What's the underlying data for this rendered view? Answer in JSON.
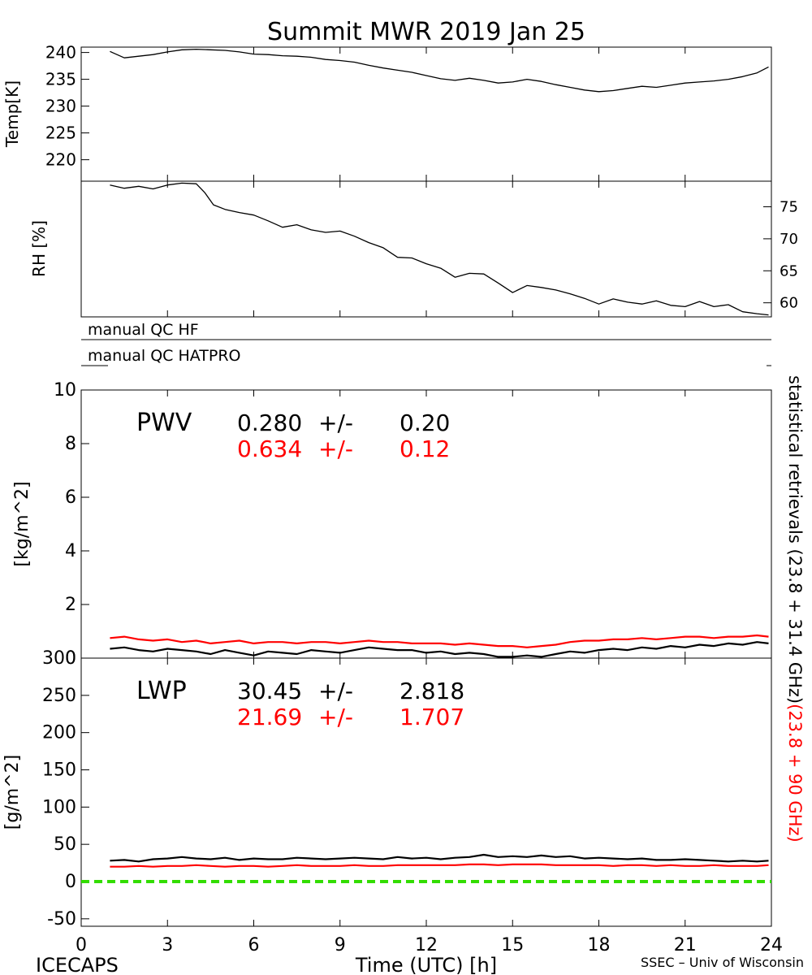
{
  "title": "Summit MWR 2019 Jan 25",
  "footer": {
    "left": "ICECAPS",
    "center": "Time (UTC) [h]",
    "right": "SSEC – Univ of Wisconsin"
  },
  "right_label": {
    "black": "statistical retrievals (23.8 + 31.4 GHz)",
    "red": "(23.8 + 90 GHz)"
  },
  "colors": {
    "axis": "#000000",
    "series_primary": "#000000",
    "series_secondary": "#ff0000",
    "zero_line": "#33dd00"
  },
  "qc": {
    "hf_label": "manual QC HF",
    "hatpro_label": "manual QC HATPRO"
  },
  "chart_data": [
    {
      "id": "temp",
      "type": "line",
      "ylabel": "Temp[K]",
      "xlim": [
        0,
        24
      ],
      "ylim": [
        216,
        241
      ],
      "yticks": [
        220,
        225,
        230,
        235,
        240
      ],
      "ytick_side": "left",
      "series": [
        {
          "color": "#000000",
          "x": [
            1.0,
            1.5,
            2.0,
            2.5,
            3.0,
            3.5,
            4.0,
            4.5,
            5.0,
            5.5,
            6.0,
            6.5,
            7.0,
            7.5,
            8.0,
            8.5,
            9.0,
            9.5,
            10.0,
            10.5,
            11.0,
            11.5,
            12.0,
            12.5,
            13.0,
            13.5,
            14.0,
            14.5,
            15.0,
            15.5,
            16.0,
            16.5,
            17.0,
            17.5,
            18.0,
            18.5,
            19.0,
            19.5,
            20.0,
            20.5,
            21.0,
            21.5,
            22.0,
            22.5,
            23.0,
            23.5,
            23.9
          ],
          "y": [
            240.2,
            239.0,
            239.3,
            239.6,
            240.1,
            240.5,
            240.6,
            240.5,
            240.4,
            240.1,
            239.7,
            239.6,
            239.4,
            239.3,
            239.1,
            238.7,
            238.5,
            238.2,
            237.6,
            237.1,
            236.7,
            236.3,
            235.7,
            235.1,
            234.8,
            235.2,
            234.8,
            234.3,
            234.5,
            235.0,
            234.6,
            234.0,
            233.5,
            233.0,
            232.7,
            232.9,
            233.3,
            233.7,
            233.5,
            233.9,
            234.3,
            234.5,
            234.7,
            235.0,
            235.5,
            236.2,
            237.3
          ]
        }
      ]
    },
    {
      "id": "rh",
      "type": "line",
      "ylabel": "RH [%]",
      "xlim": [
        0,
        24
      ],
      "ylim": [
        57.8,
        79.0
      ],
      "yticks": [
        60,
        65,
        70,
        75
      ],
      "ytick_side": "right",
      "series": [
        {
          "color": "#000000",
          "x": [
            1.0,
            1.5,
            2.0,
            2.5,
            3.0,
            3.5,
            4.0,
            4.3,
            4.6,
            5.0,
            5.5,
            6.0,
            6.5,
            7.0,
            7.5,
            8.0,
            8.5,
            9.0,
            9.5,
            10.0,
            10.5,
            11.0,
            11.5,
            12.0,
            12.5,
            13.0,
            13.5,
            14.0,
            14.5,
            15.0,
            15.5,
            16.0,
            16.5,
            17.0,
            17.5,
            18.0,
            18.5,
            19.0,
            19.5,
            20.0,
            20.5,
            21.0,
            21.5,
            22.0,
            22.5,
            23.0,
            23.5,
            23.9
          ],
          "y": [
            78.4,
            77.9,
            78.2,
            77.8,
            78.4,
            78.7,
            78.6,
            77.2,
            75.3,
            74.6,
            74.1,
            73.7,
            72.8,
            71.8,
            72.2,
            71.4,
            71.0,
            71.2,
            70.4,
            69.4,
            68.6,
            67.1,
            67.0,
            66.1,
            65.4,
            64.0,
            64.6,
            64.5,
            63.1,
            61.6,
            62.7,
            62.4,
            62.0,
            61.4,
            60.7,
            59.8,
            60.6,
            60.1,
            59.8,
            60.3,
            59.6,
            59.4,
            60.2,
            59.4,
            59.7,
            58.6,
            58.3,
            58.1
          ]
        }
      ]
    },
    {
      "id": "pwv",
      "type": "line",
      "ylabel": "[kg/m^2]",
      "xlim": [
        0,
        24
      ],
      "ylim": [
        0,
        10
      ],
      "yticks": [
        0,
        2,
        4,
        6,
        8,
        10
      ],
      "ytick_side": "left",
      "annotation": {
        "label": "PWV",
        "primary_mean": "0.280",
        "primary_sep": "+/-",
        "primary_std": "0.20",
        "secondary_mean": "0.634",
        "secondary_sep": "+/-",
        "secondary_std": "0.12"
      },
      "series": [
        {
          "color": "#000000",
          "x": [
            1.0,
            1.5,
            2.0,
            2.5,
            3.0,
            3.5,
            4.0,
            4.5,
            5.0,
            5.5,
            6.0,
            6.5,
            7.0,
            7.5,
            8.0,
            8.5,
            9.0,
            9.5,
            10.0,
            10.5,
            11.0,
            11.5,
            12.0,
            12.5,
            13.0,
            13.5,
            14.0,
            14.5,
            15.0,
            15.5,
            16.0,
            16.5,
            17.0,
            17.5,
            18.0,
            18.5,
            19.0,
            19.5,
            20.0,
            20.5,
            21.0,
            21.5,
            22.0,
            22.5,
            23.0,
            23.5,
            23.9
          ],
          "y": [
            0.35,
            0.4,
            0.3,
            0.25,
            0.35,
            0.3,
            0.25,
            0.15,
            0.3,
            0.2,
            0.1,
            0.25,
            0.2,
            0.15,
            0.3,
            0.25,
            0.2,
            0.3,
            0.4,
            0.35,
            0.3,
            0.3,
            0.2,
            0.25,
            0.15,
            0.2,
            0.15,
            0.05,
            0.05,
            0.1,
            0.05,
            0.15,
            0.25,
            0.2,
            0.3,
            0.35,
            0.3,
            0.4,
            0.35,
            0.45,
            0.4,
            0.5,
            0.45,
            0.55,
            0.5,
            0.6,
            0.55
          ]
        },
        {
          "color": "#ff0000",
          "x": [
            1.0,
            1.5,
            2.0,
            2.5,
            3.0,
            3.5,
            4.0,
            4.5,
            5.0,
            5.5,
            6.0,
            6.5,
            7.0,
            7.5,
            8.0,
            8.5,
            9.0,
            9.5,
            10.0,
            10.5,
            11.0,
            11.5,
            12.0,
            12.5,
            13.0,
            13.5,
            14.0,
            14.5,
            15.0,
            15.5,
            16.0,
            16.5,
            17.0,
            17.5,
            18.0,
            18.5,
            19.0,
            19.5,
            20.0,
            20.5,
            21.0,
            21.5,
            22.0,
            22.5,
            23.0,
            23.5,
            23.9
          ],
          "y": [
            0.75,
            0.8,
            0.7,
            0.65,
            0.7,
            0.6,
            0.65,
            0.55,
            0.6,
            0.65,
            0.55,
            0.6,
            0.6,
            0.55,
            0.6,
            0.6,
            0.55,
            0.6,
            0.65,
            0.6,
            0.6,
            0.55,
            0.55,
            0.55,
            0.5,
            0.55,
            0.5,
            0.45,
            0.45,
            0.4,
            0.45,
            0.5,
            0.6,
            0.65,
            0.65,
            0.7,
            0.7,
            0.75,
            0.7,
            0.75,
            0.8,
            0.8,
            0.75,
            0.8,
            0.8,
            0.85,
            0.8
          ]
        }
      ]
    },
    {
      "id": "lwp",
      "type": "line",
      "ylabel": "[g/m^2]",
      "xlabel": "Time (UTC) [h]",
      "xlim": [
        0,
        24
      ],
      "xticks": [
        0,
        3,
        6,
        9,
        12,
        15,
        18,
        21,
        24
      ],
      "ylim": [
        -60,
        300
      ],
      "yticks": [
        -50,
        0,
        50,
        100,
        150,
        200,
        250,
        300
      ],
      "ytick_side": "left",
      "annotation": {
        "label": "LWP",
        "primary_mean": "30.45",
        "primary_sep": "+/-",
        "primary_std": "2.818",
        "secondary_mean": "21.69",
        "secondary_sep": "+/-",
        "secondary_std": "1.707"
      },
      "zero_line": 0,
      "series": [
        {
          "color": "#000000",
          "x": [
            1.0,
            1.5,
            2.0,
            2.5,
            3.0,
            3.5,
            4.0,
            4.5,
            5.0,
            5.5,
            6.0,
            6.5,
            7.0,
            7.5,
            8.0,
            8.5,
            9.0,
            9.5,
            10.0,
            10.5,
            11.0,
            11.5,
            12.0,
            12.5,
            13.0,
            13.5,
            14.0,
            14.5,
            15.0,
            15.5,
            16.0,
            16.5,
            17.0,
            17.5,
            18.0,
            18.5,
            19.0,
            19.5,
            20.0,
            20.5,
            21.0,
            21.5,
            22.0,
            22.5,
            23.0,
            23.5,
            23.9
          ],
          "y": [
            28,
            29,
            27,
            30,
            31,
            33,
            31,
            30,
            32,
            29,
            31,
            30,
            30,
            32,
            31,
            30,
            31,
            32,
            31,
            30,
            33,
            31,
            32,
            30,
            32,
            33,
            36,
            33,
            34,
            33,
            35,
            33,
            34,
            31,
            32,
            31,
            30,
            31,
            29,
            29,
            30,
            29,
            28,
            27,
            28,
            27,
            28
          ]
        },
        {
          "color": "#ff0000",
          "x": [
            1.0,
            1.5,
            2.0,
            2.5,
            3.0,
            3.5,
            4.0,
            4.5,
            5.0,
            5.5,
            6.0,
            6.5,
            7.0,
            7.5,
            8.0,
            8.5,
            9.0,
            9.5,
            10.0,
            10.5,
            11.0,
            11.5,
            12.0,
            12.5,
            13.0,
            13.5,
            14.0,
            14.5,
            15.0,
            15.5,
            16.0,
            16.5,
            17.0,
            17.5,
            18.0,
            18.5,
            19.0,
            19.5,
            20.0,
            20.5,
            21.0,
            21.5,
            22.0,
            22.5,
            23.0,
            23.5,
            23.9
          ],
          "y": [
            20,
            20,
            21,
            20,
            21,
            21,
            22,
            21,
            20,
            21,
            21,
            20,
            21,
            22,
            21,
            21,
            21,
            22,
            21,
            21,
            22,
            22,
            22,
            22,
            22,
            23,
            23,
            22,
            23,
            23,
            23,
            22,
            22,
            22,
            22,
            21,
            22,
            22,
            21,
            22,
            21,
            21,
            22,
            21,
            21,
            21,
            22
          ]
        }
      ]
    }
  ]
}
